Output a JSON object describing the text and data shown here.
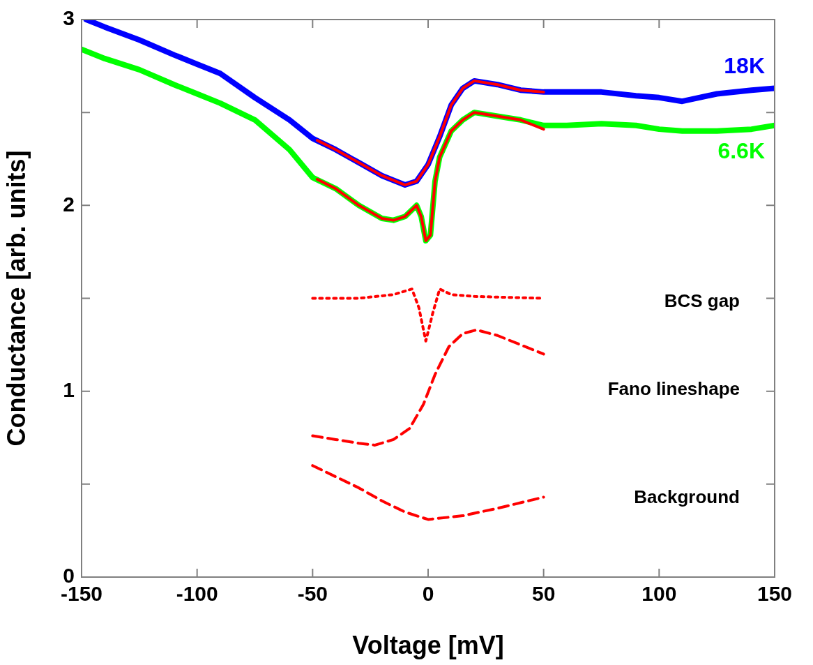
{
  "chart_data": {
    "type": "line",
    "xlabel": "Voltage [mV]",
    "ylabel": "Conductance [arb. units]",
    "xlim": [
      -150,
      150
    ],
    "xticks": [
      -150,
      -100,
      -50,
      0,
      50,
      100,
      150
    ],
    "ylim": [
      0,
      3
    ],
    "yticks": [
      0,
      {
        "value": 0.5,
        "label": null
      },
      1,
      {
        "value": 1.5,
        "label": null
      },
      2,
      {
        "value": 2.5,
        "label": null
      },
      3
    ],
    "grid": false,
    "legend": false,
    "marker": "none",
    "series": [
      {
        "name": "18K",
        "color": "#0000ff",
        "line_style": "solid",
        "x": [
          -148,
          -140,
          -125,
          -110,
          -100,
          -90,
          -75,
          -60,
          -50,
          -40,
          -30,
          -20,
          -10,
          -5,
          0,
          5,
          10,
          15,
          20,
          30,
          40,
          50,
          60,
          75,
          90,
          100,
          110,
          125,
          140,
          150
        ],
        "values": [
          3.0,
          2.96,
          2.89,
          2.81,
          2.76,
          2.71,
          2.58,
          2.46,
          2.36,
          2.3,
          2.23,
          2.16,
          2.11,
          2.13,
          2.22,
          2.37,
          2.54,
          2.63,
          2.67,
          2.65,
          2.62,
          2.61,
          2.61,
          2.61,
          2.59,
          2.58,
          2.56,
          2.6,
          2.62,
          2.63
        ]
      },
      {
        "name": "6.6K",
        "color": "#00ff00",
        "line_style": "solid",
        "x": [
          -150,
          -140,
          -125,
          -110,
          -100,
          -90,
          -75,
          -60,
          -50,
          -40,
          -30,
          -20,
          -15,
          -10,
          -5,
          -3,
          -1,
          1,
          3,
          5,
          10,
          15,
          20,
          30,
          40,
          50,
          60,
          75,
          90,
          100,
          110,
          125,
          140,
          150
        ],
        "values": [
          2.84,
          2.79,
          2.73,
          2.65,
          2.6,
          2.55,
          2.46,
          2.3,
          2.15,
          2.09,
          2.0,
          1.93,
          1.92,
          1.94,
          2.0,
          1.94,
          1.81,
          1.84,
          2.13,
          2.26,
          2.4,
          2.46,
          2.5,
          2.48,
          2.46,
          2.43,
          2.43,
          2.44,
          2.43,
          2.41,
          2.4,
          2.4,
          2.41,
          2.43
        ]
      },
      {
        "color": "#ff0000",
        "line_style": "solid",
        "x": [
          -48,
          -40,
          -30,
          -20,
          -10,
          -5,
          0,
          5,
          10,
          15,
          20,
          30,
          40,
          50
        ],
        "values": [
          2.35,
          2.3,
          2.23,
          2.16,
          2.11,
          2.13,
          2.22,
          2.37,
          2.54,
          2.63,
          2.67,
          2.65,
          2.62,
          2.61
        ]
      },
      {
        "color": "#ff0000",
        "line_style": "solid",
        "x": [
          -48,
          -40,
          -30,
          -20,
          -15,
          -10,
          -5,
          -3,
          -1,
          1,
          3,
          5,
          10,
          15,
          20,
          30,
          40,
          50
        ],
        "values": [
          2.14,
          2.09,
          2.0,
          1.93,
          1.92,
          1.94,
          2.0,
          1.94,
          1.81,
          1.84,
          2.13,
          2.26,
          2.4,
          2.46,
          2.5,
          2.48,
          2.46,
          2.41
        ]
      },
      {
        "color": "#ff0000",
        "line_style": "dotted",
        "x": [
          -50,
          -30,
          -15,
          -7,
          -4,
          -1,
          2,
          5,
          10,
          20,
          50
        ],
        "values": [
          1.5,
          1.5,
          1.52,
          1.55,
          1.45,
          1.27,
          1.42,
          1.55,
          1.52,
          1.51,
          1.5
        ]
      },
      {
        "color": "#ff0000",
        "line_style": "dashed",
        "x": [
          -50,
          -40,
          -30,
          -23,
          -15,
          -8,
          -2,
          3,
          9,
          15,
          21,
          30,
          40,
          50
        ],
        "values": [
          0.76,
          0.74,
          0.72,
          0.71,
          0.74,
          0.8,
          0.93,
          1.09,
          1.24,
          1.31,
          1.33,
          1.3,
          1.25,
          1.2
        ]
      },
      {
        "color": "#ff0000",
        "line_style": "dashed",
        "x": [
          -50,
          -40,
          -30,
          -20,
          -10,
          0,
          15,
          30,
          50
        ],
        "values": [
          0.6,
          0.54,
          0.48,
          0.41,
          0.35,
          0.31,
          0.33,
          0.37,
          0.43
        ]
      }
    ],
    "annotations": [
      "BCS gap",
      "Fano lineshape",
      "Background"
    ]
  }
}
